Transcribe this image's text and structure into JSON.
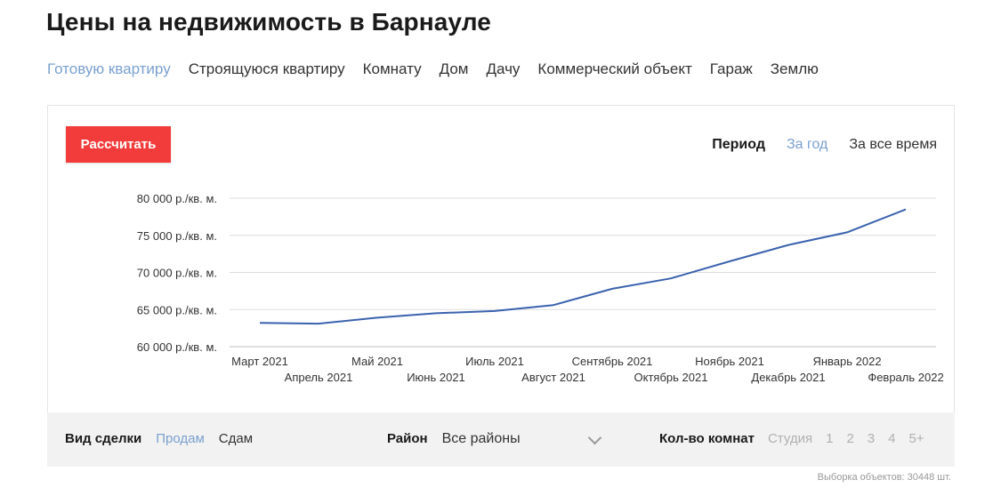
{
  "header": {
    "title": "Цены на недвижимость в Барнауле"
  },
  "property_types": [
    {
      "label": "Готовую квартиру",
      "active": true
    },
    {
      "label": "Строящуюся квартиру",
      "active": false
    },
    {
      "label": "Комнату",
      "active": false
    },
    {
      "label": "Дом",
      "active": false
    },
    {
      "label": "Дачу",
      "active": false
    },
    {
      "label": "Коммерческий объект",
      "active": false
    },
    {
      "label": "Гараж",
      "active": false
    },
    {
      "label": "Землю",
      "active": false
    }
  ],
  "controls": {
    "calc_label": "Рассчитать",
    "period_label": "Период",
    "period_year": "За год",
    "period_all": "За все время"
  },
  "colors": {
    "accent": "#7aa0cf",
    "button": "#f23c3c",
    "line": "#3a62ae"
  },
  "chart_data": {
    "type": "line",
    "categories": [
      "Март 2021",
      "Апрель 2021",
      "Май 2021",
      "Июнь 2021",
      "Июль 2021",
      "Август 2021",
      "Сентябрь 2021",
      "Октябрь 2021",
      "Ноябрь 2021",
      "Декабрь 2021",
      "Январь 2022",
      "Февраль 2022"
    ],
    "values": [
      63200,
      63100,
      63900,
      64500,
      64800,
      65600,
      67800,
      69200,
      71500,
      73700,
      75400,
      78500
    ],
    "ylim": [
      60000,
      80000
    ],
    "yticks": [
      80000,
      75000,
      70000,
      65000,
      60000
    ],
    "ytick_labels": [
      "80 000 р./кв. м.",
      "75 000 р./кв. м.",
      "70 000 р./кв. м.",
      "65 000 р./кв. м.",
      "60 000 р./кв. м."
    ],
    "grid": true
  },
  "filters": {
    "deal_label": "Вид сделки",
    "deal_sell": "Продам",
    "deal_rent": "Сдам",
    "district_label": "Район",
    "district_value": "Все районы",
    "rooms_label": "Кол-во комнат",
    "rooms": [
      "Студия",
      "1",
      "2",
      "3",
      "4",
      "5+"
    ]
  },
  "footer": {
    "objects_count": "Выборка объектов: 30448 шт."
  }
}
